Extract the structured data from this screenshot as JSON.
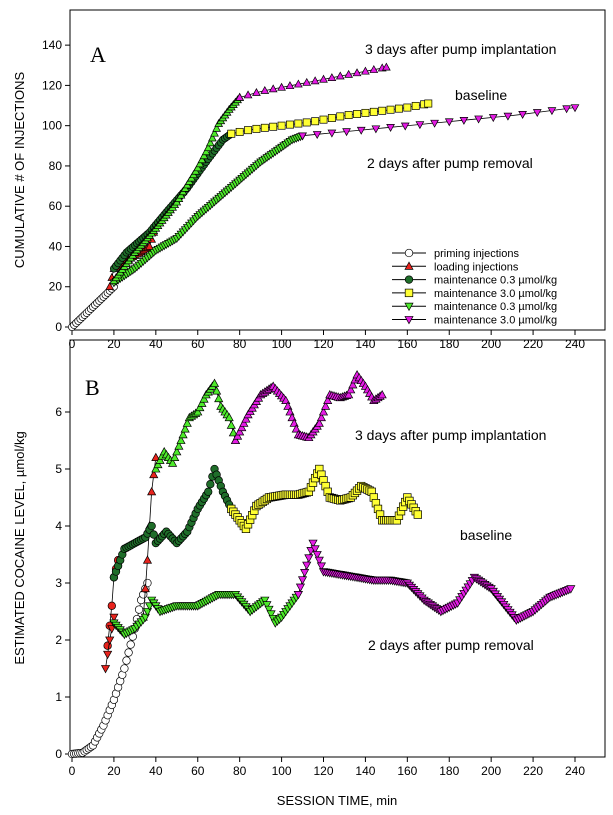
{
  "colors": {
    "priming": "#ffffff",
    "loading": "#e8231d",
    "maint_green_dark": "#1f6e2a",
    "maint_yellow": "#ffff33",
    "maint_green_light": "#4dea2a",
    "maint_magenta": "#e41ce4",
    "line": "#000000"
  },
  "chart_data": [
    {
      "type": "line",
      "panel": "A",
      "xlabel": "",
      "ylabel": "CUMULATIVE # OF INJECTIONS",
      "xlim": [
        0,
        240
      ],
      "ylim": [
        0,
        150
      ],
      "xticks": [
        0,
        20,
        40,
        60,
        80,
        100,
        120,
        140,
        160,
        180,
        200,
        220,
        240
      ],
      "yticks": [
        0,
        20,
        40,
        60,
        80,
        100,
        120,
        140
      ],
      "grid": false,
      "legend_position": "center-right",
      "legend": [
        {
          "label": "priming injections",
          "marker": "circle",
          "color": "#ffffff"
        },
        {
          "label": "loading injections",
          "marker": "triangle-up",
          "color": "#e8231d"
        },
        {
          "label": "maintenance 0.3 µmol/kg",
          "marker": "circle",
          "color": "#1f6e2a"
        },
        {
          "label": "maintenance 3.0 µmol/kg",
          "marker": "square",
          "color": "#ffff33"
        },
        {
          "label": "maintenance 0.3 µmol/kg",
          "marker": "triangle-down",
          "color": "#4dea2a"
        },
        {
          "label": "maintenance 3.0 µmol/kg",
          "marker": "triangle-down",
          "color": "#e41ce4"
        }
      ],
      "annotations": [
        {
          "text": "3 days after pump implantation",
          "x": 168,
          "y": 130
        },
        {
          "text": "baseline",
          "x": 176,
          "y": 109
        },
        {
          "text": "2 days after pump removal",
          "x": 162,
          "y": 86
        }
      ],
      "series": [
        {
          "name": "priming injections",
          "marker": "circle",
          "color": "#ffffff",
          "points": [
            [
              0,
              0
            ],
            [
              20,
              20
            ]
          ],
          "step": 1
        },
        {
          "name": "loading injections",
          "marker": "triangle-up",
          "color": "#e8231d",
          "points": [
            [
              18,
              20
            ],
            [
              20,
              29
            ],
            [
              37,
              40
            ],
            [
              39,
              47
            ]
          ],
          "step": 1
        },
        {
          "name": "maintenance 0.3 µmol/kg",
          "marker": "circle",
          "color": "#1f6e2a",
          "points": [
            [
              20,
              29
            ],
            [
              26,
              37
            ],
            [
              37,
              47
            ],
            [
              45,
              57
            ],
            [
              55,
              69
            ],
            [
              64,
              82
            ],
            [
              72,
              93
            ],
            [
              76,
              96
            ]
          ],
          "step": 1
        },
        {
          "name": "maintenance 3.0 µmol/kg",
          "marker": "square",
          "color": "#ffff33",
          "points": [
            [
              76,
              96
            ],
            [
              85,
              98
            ],
            [
              100,
              100
            ],
            [
              115,
              102
            ],
            [
              130,
              105
            ],
            [
              145,
              107
            ],
            [
              160,
              109
            ],
            [
              170,
              111
            ]
          ],
          "step": 4
        },
        {
          "name": "maintenance 0.3 µmol/kg",
          "marker": "triangle-down",
          "color": "#4dea2a",
          "points": [
            [
              20,
              22
            ],
            [
              30,
              29
            ],
            [
              40,
              38
            ],
            [
              50,
              44
            ],
            [
              60,
              55
            ],
            [
              70,
              64
            ],
            [
              80,
              73
            ],
            [
              90,
              82
            ],
            [
              105,
              93
            ],
            [
              110,
              95
            ]
          ],
          "step": 1
        },
        {
          "name": "maintenance 0.3 µmol/kg",
          "marker": "triangle-up",
          "color": "#4dea2a",
          "points": [
            [
              20,
              23
            ],
            [
              30,
              37
            ],
            [
              40,
              49
            ],
            [
              50,
              62
            ],
            [
              60,
              79
            ],
            [
              65,
              89
            ],
            [
              70,
              101
            ],
            [
              75,
              108
            ],
            [
              80,
              114
            ]
          ],
          "step": 1
        },
        {
          "name": "maintenance 3.0 µmol/kg",
          "marker": "triangle-up",
          "color": "#e41ce4",
          "points": [
            [
              80,
              114
            ],
            [
              90,
              117
            ],
            [
              100,
              119
            ],
            [
              110,
              121
            ],
            [
              120,
              123
            ],
            [
              130,
              125
            ],
            [
              140,
              127
            ],
            [
              150,
              129
            ]
          ],
          "step": 4
        },
        {
          "name": "maintenance 3.0 µmol/kg",
          "marker": "triangle-down",
          "color": "#e41ce4",
          "points": [
            [
              110,
              95
            ],
            [
              130,
              97
            ],
            [
              150,
              99
            ],
            [
              170,
              101
            ],
            [
              190,
              103
            ],
            [
              210,
              105
            ],
            [
              225,
              107
            ],
            [
              240,
              109
            ]
          ],
          "step": 7
        }
      ]
    },
    {
      "type": "line",
      "panel": "B",
      "xlabel": "SESSION TIME, min",
      "ylabel": "ESTIMATED COCAINE LEVEL, µmol/kg",
      "xlim": [
        0,
        240
      ],
      "ylim": [
        0,
        7
      ],
      "xticks": [
        0,
        20,
        40,
        60,
        80,
        100,
        120,
        140,
        160,
        180,
        200,
        220,
        240
      ],
      "yticks": [
        0,
        1,
        2,
        3,
        4,
        5,
        6
      ],
      "grid": false,
      "annotations": [
        {
          "text": "3 days after pump implantation",
          "x": 172,
          "y": 5.5
        },
        {
          "text": "baseline",
          "x": 178,
          "y": 4.0
        },
        {
          "text": "2 days after pump removal",
          "x": 168,
          "y": 1.7
        }
      ],
      "series": [
        {
          "name": "priming injections",
          "marker": "circle",
          "color": "#ffffff",
          "points": [
            [
              0,
              0
            ],
            [
              5,
              0.02
            ],
            [
              10,
              0.15
            ],
            [
              15,
              0.5
            ],
            [
              20,
              0.95
            ],
            [
              25,
              1.5
            ],
            [
              30,
              2.2
            ],
            [
              33,
              2.7
            ],
            [
              36,
              3.0
            ]
          ],
          "step": 1
        },
        {
          "name": "loading injections (A)",
          "marker": "triangle-up",
          "color": "#e8231d",
          "points": [
            [
              34,
              2.4
            ],
            [
              36,
              3.4
            ],
            [
              38,
              4.6
            ],
            [
              40,
              5.2
            ]
          ],
          "step": 1
        },
        {
          "name": "loading injections (B)",
          "marker": "circle",
          "color": "#e8231d",
          "points": [
            [
              17,
              1.9
            ],
            [
              19,
              2.6
            ],
            [
              20,
              3.1
            ],
            [
              22,
              3.4
            ]
          ],
          "step": 1
        },
        {
          "name": "loading injections (C)",
          "marker": "triangle-down",
          "color": "#e8231d",
          "points": [
            [
              16,
              1.5
            ],
            [
              18,
              2.0
            ],
            [
              20,
              2.4
            ]
          ],
          "step": 1
        },
        {
          "name": "maintenance 0.3 µmol/kg",
          "marker": "circle",
          "color": "#1f6e2a",
          "points": [
            [
              20,
              3.1
            ],
            [
              25,
              3.6
            ],
            [
              30,
              3.7
            ],
            [
              35,
              3.8
            ],
            [
              38,
              4.0
            ],
            [
              40,
              3.7
            ],
            [
              45,
              3.9
            ],
            [
              50,
              3.7
            ],
            [
              55,
              3.9
            ],
            [
              60,
              4.3
            ],
            [
              65,
              4.6
            ],
            [
              68,
              5.0
            ],
            [
              72,
              4.6
            ],
            [
              76,
              4.3
            ]
          ],
          "step": 1
        },
        {
          "name": "maintenance 3.0 µmol/kg",
          "marker": "square",
          "color": "#ffff33",
          "points": [
            [
              76,
              4.3
            ],
            [
              83,
              3.95
            ],
            [
              88,
              4.35
            ],
            [
              94,
              4.5
            ],
            [
              102,
              4.55
            ],
            [
              108,
              4.55
            ],
            [
              113,
              4.6
            ],
            [
              118,
              5.0
            ],
            [
              123,
              4.5
            ],
            [
              128,
              4.45
            ],
            [
              133,
              4.5
            ],
            [
              138,
              4.7
            ],
            [
              143,
              4.6
            ],
            [
              148,
              4.1
            ],
            [
              155,
              4.1
            ],
            [
              160,
              4.5
            ],
            [
              165,
              4.2
            ]
          ],
          "step": 1
        },
        {
          "name": "maintenance 0.3 µmol/kg",
          "marker": "triangle-down",
          "color": "#4dea2a",
          "points": [
            [
              20,
              2.3
            ],
            [
              25,
              2.1
            ],
            [
              30,
              2.2
            ],
            [
              35,
              2.4
            ],
            [
              38,
              2.7
            ],
            [
              42,
              2.5
            ],
            [
              50,
              2.6
            ],
            [
              60,
              2.6
            ],
            [
              70,
              2.8
            ],
            [
              78,
              2.8
            ],
            [
              85,
              2.5
            ],
            [
              92,
              2.7
            ],
            [
              97,
              2.3
            ],
            [
              100,
              2.4
            ],
            [
              104,
              2.6
            ],
            [
              108,
              2.8
            ]
          ],
          "step": 1
        },
        {
          "name": "maintenance 0.3 µmol/kg",
          "marker": "triangle-up",
          "color": "#4dea2a",
          "points": [
            [
              40,
              5.0
            ],
            [
              44,
              5.3
            ],
            [
              48,
              5.1
            ],
            [
              52,
              5.5
            ],
            [
              56,
              5.9
            ],
            [
              60,
              6.0
            ],
            [
              64,
              6.3
            ],
            [
              68,
              6.5
            ],
            [
              71,
              6.1
            ],
            [
              75,
              5.9
            ],
            [
              78,
              5.5
            ]
          ],
          "step": 1
        },
        {
          "name": "maintenance 3.0 µmol/kg",
          "marker": "triangle-up",
          "color": "#e41ce4",
          "points": [
            [
              78,
              5.5
            ],
            [
              84,
              5.95
            ],
            [
              90,
              6.3
            ],
            [
              96,
              6.45
            ],
            [
              102,
              6.2
            ],
            [
              108,
              5.6
            ],
            [
              113,
              5.55
            ],
            [
              118,
              5.8
            ],
            [
              123,
              6.3
            ],
            [
              128,
              6.25
            ],
            [
              132,
              6.3
            ],
            [
              136,
              6.65
            ],
            [
              140,
              6.45
            ],
            [
              144,
              6.2
            ],
            [
              148,
              6.3
            ]
          ],
          "step": 1
        },
        {
          "name": "maintenance 3.0 µmol/kg",
          "marker": "triangle-down",
          "color": "#e41ce4",
          "points": [
            [
              108,
              2.8
            ],
            [
              115,
              3.7
            ],
            [
              120,
              3.2
            ],
            [
              128,
              3.15
            ],
            [
              136,
              3.1
            ],
            [
              144,
              3.05
            ],
            [
              152,
              3.05
            ],
            [
              160,
              3.0
            ],
            [
              168,
              2.7
            ],
            [
              176,
              2.5
            ],
            [
              184,
              2.65
            ],
            [
              192,
              3.1
            ],
            [
              200,
              2.9
            ],
            [
              212,
              2.35
            ],
            [
              220,
              2.5
            ],
            [
              228,
              2.75
            ],
            [
              238,
              2.9
            ]
          ],
          "step": 1
        }
      ]
    }
  ]
}
